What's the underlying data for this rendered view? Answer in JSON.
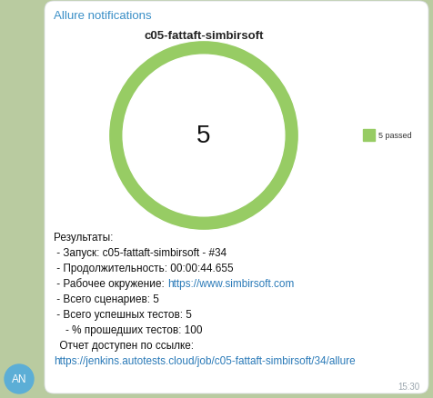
{
  "sender": "Allure notifications",
  "avatar": "AN",
  "time": "15:30",
  "chart_data": {
    "type": "pie",
    "title": "c05-fattaft-simbirsoft",
    "categories": [
      "5 passed"
    ],
    "values": [
      5
    ],
    "colors": [
      "#97cc64"
    ],
    "total": 5
  },
  "message": {
    "lines": [
      {
        "text": "Результаты:"
      },
      {
        "text": " - Запуск: c05-fattaft-simbirsoft - #34"
      },
      {
        "text": " - Продолжительность: 00:00:44.655"
      },
      {
        "text": " - Рабочее окружение: ",
        "link": "https://www.simbirsoft.com"
      },
      {
        "text": " - Всего сценариев: 5"
      },
      {
        "text": " - Всего успешных тестов: 5"
      },
      {
        "text": "    - % прошедших тестов: 100"
      },
      {
        "text": "  Отчет доступен по ссылке:"
      },
      {
        "link": "https://jenkins.autotests.cloud/job/c05-fattaft-simbirsoft/34/allure"
      }
    ]
  }
}
